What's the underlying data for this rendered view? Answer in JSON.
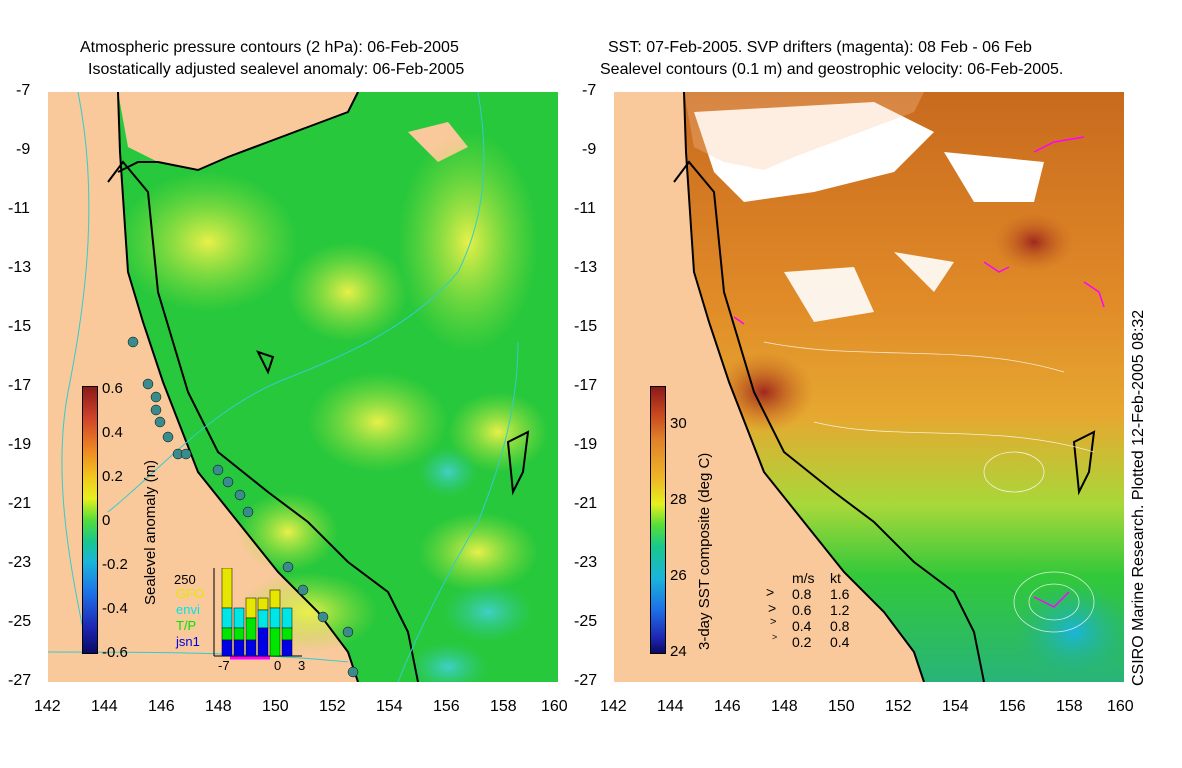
{
  "left_panel": {
    "title_line1": "Atmospheric pressure contours (2 hPa): 06-Feb-2005",
    "title_line2": "Isostatically adjusted sealevel anomaly: 06-Feb-2005",
    "colorbar": {
      "label": "Sealevel anomaly (m)",
      "ticks": [
        "0.6",
        "0.4",
        "0.2",
        "0",
        "-0.2",
        "-0.4",
        "-0.6"
      ],
      "range": [
        -0.6,
        0.6
      ]
    },
    "inset": {
      "ymax_label": "250",
      "legend": [
        {
          "name": "GFO",
          "color": "#e6e600"
        },
        {
          "name": "envi",
          "color": "#00e6e6"
        },
        {
          "name": "T/P",
          "color": "#00e600"
        },
        {
          "name": "jsn1",
          "color": "#0000e6"
        }
      ],
      "xticks": [
        "-7",
        "0",
        "3"
      ]
    }
  },
  "right_panel": {
    "title_line1": "SST: 07-Feb-2005. SVP drifters (magenta): 08 Feb - 06 Feb",
    "title_line2": "Sealevel contours (0.1 m) and geostrophic velocity: 06-Feb-2005.",
    "colorbar": {
      "label": "3-day SST composite (deg C)",
      "ticks": [
        "30",
        "28",
        "26",
        "24"
      ],
      "range": [
        24,
        31
      ]
    },
    "velocity_legend": {
      "header_ms": "m/s",
      "header_kt": "kt",
      "rows": [
        {
          "ms": "0.8",
          "kt": "1.6"
        },
        {
          "ms": "0.6",
          "kt": "1.2"
        },
        {
          "ms": "0.4",
          "kt": "0.8"
        },
        {
          "ms": "0.2",
          "kt": "0.4"
        }
      ]
    },
    "credit": "CSIRO Marine Research. Plotted 12-Feb-2005 08:32"
  },
  "axes": {
    "y_ticks": [
      "-7",
      "-9",
      "-11",
      "-13",
      "-15",
      "-17",
      "-19",
      "-21",
      "-23",
      "-25",
      "-27"
    ],
    "x_ticks": [
      "142",
      "144",
      "146",
      "148",
      "150",
      "152",
      "154",
      "156",
      "158",
      "160"
    ],
    "lon_range": [
      142,
      160
    ],
    "lat_range": [
      -27,
      -7
    ]
  },
  "colors": {
    "land": "#f9c89b",
    "sla_base": "#2ec82e",
    "coast": "#000000",
    "pressure_contour": "#33cccc",
    "drifter": "#ff00ff"
  }
}
